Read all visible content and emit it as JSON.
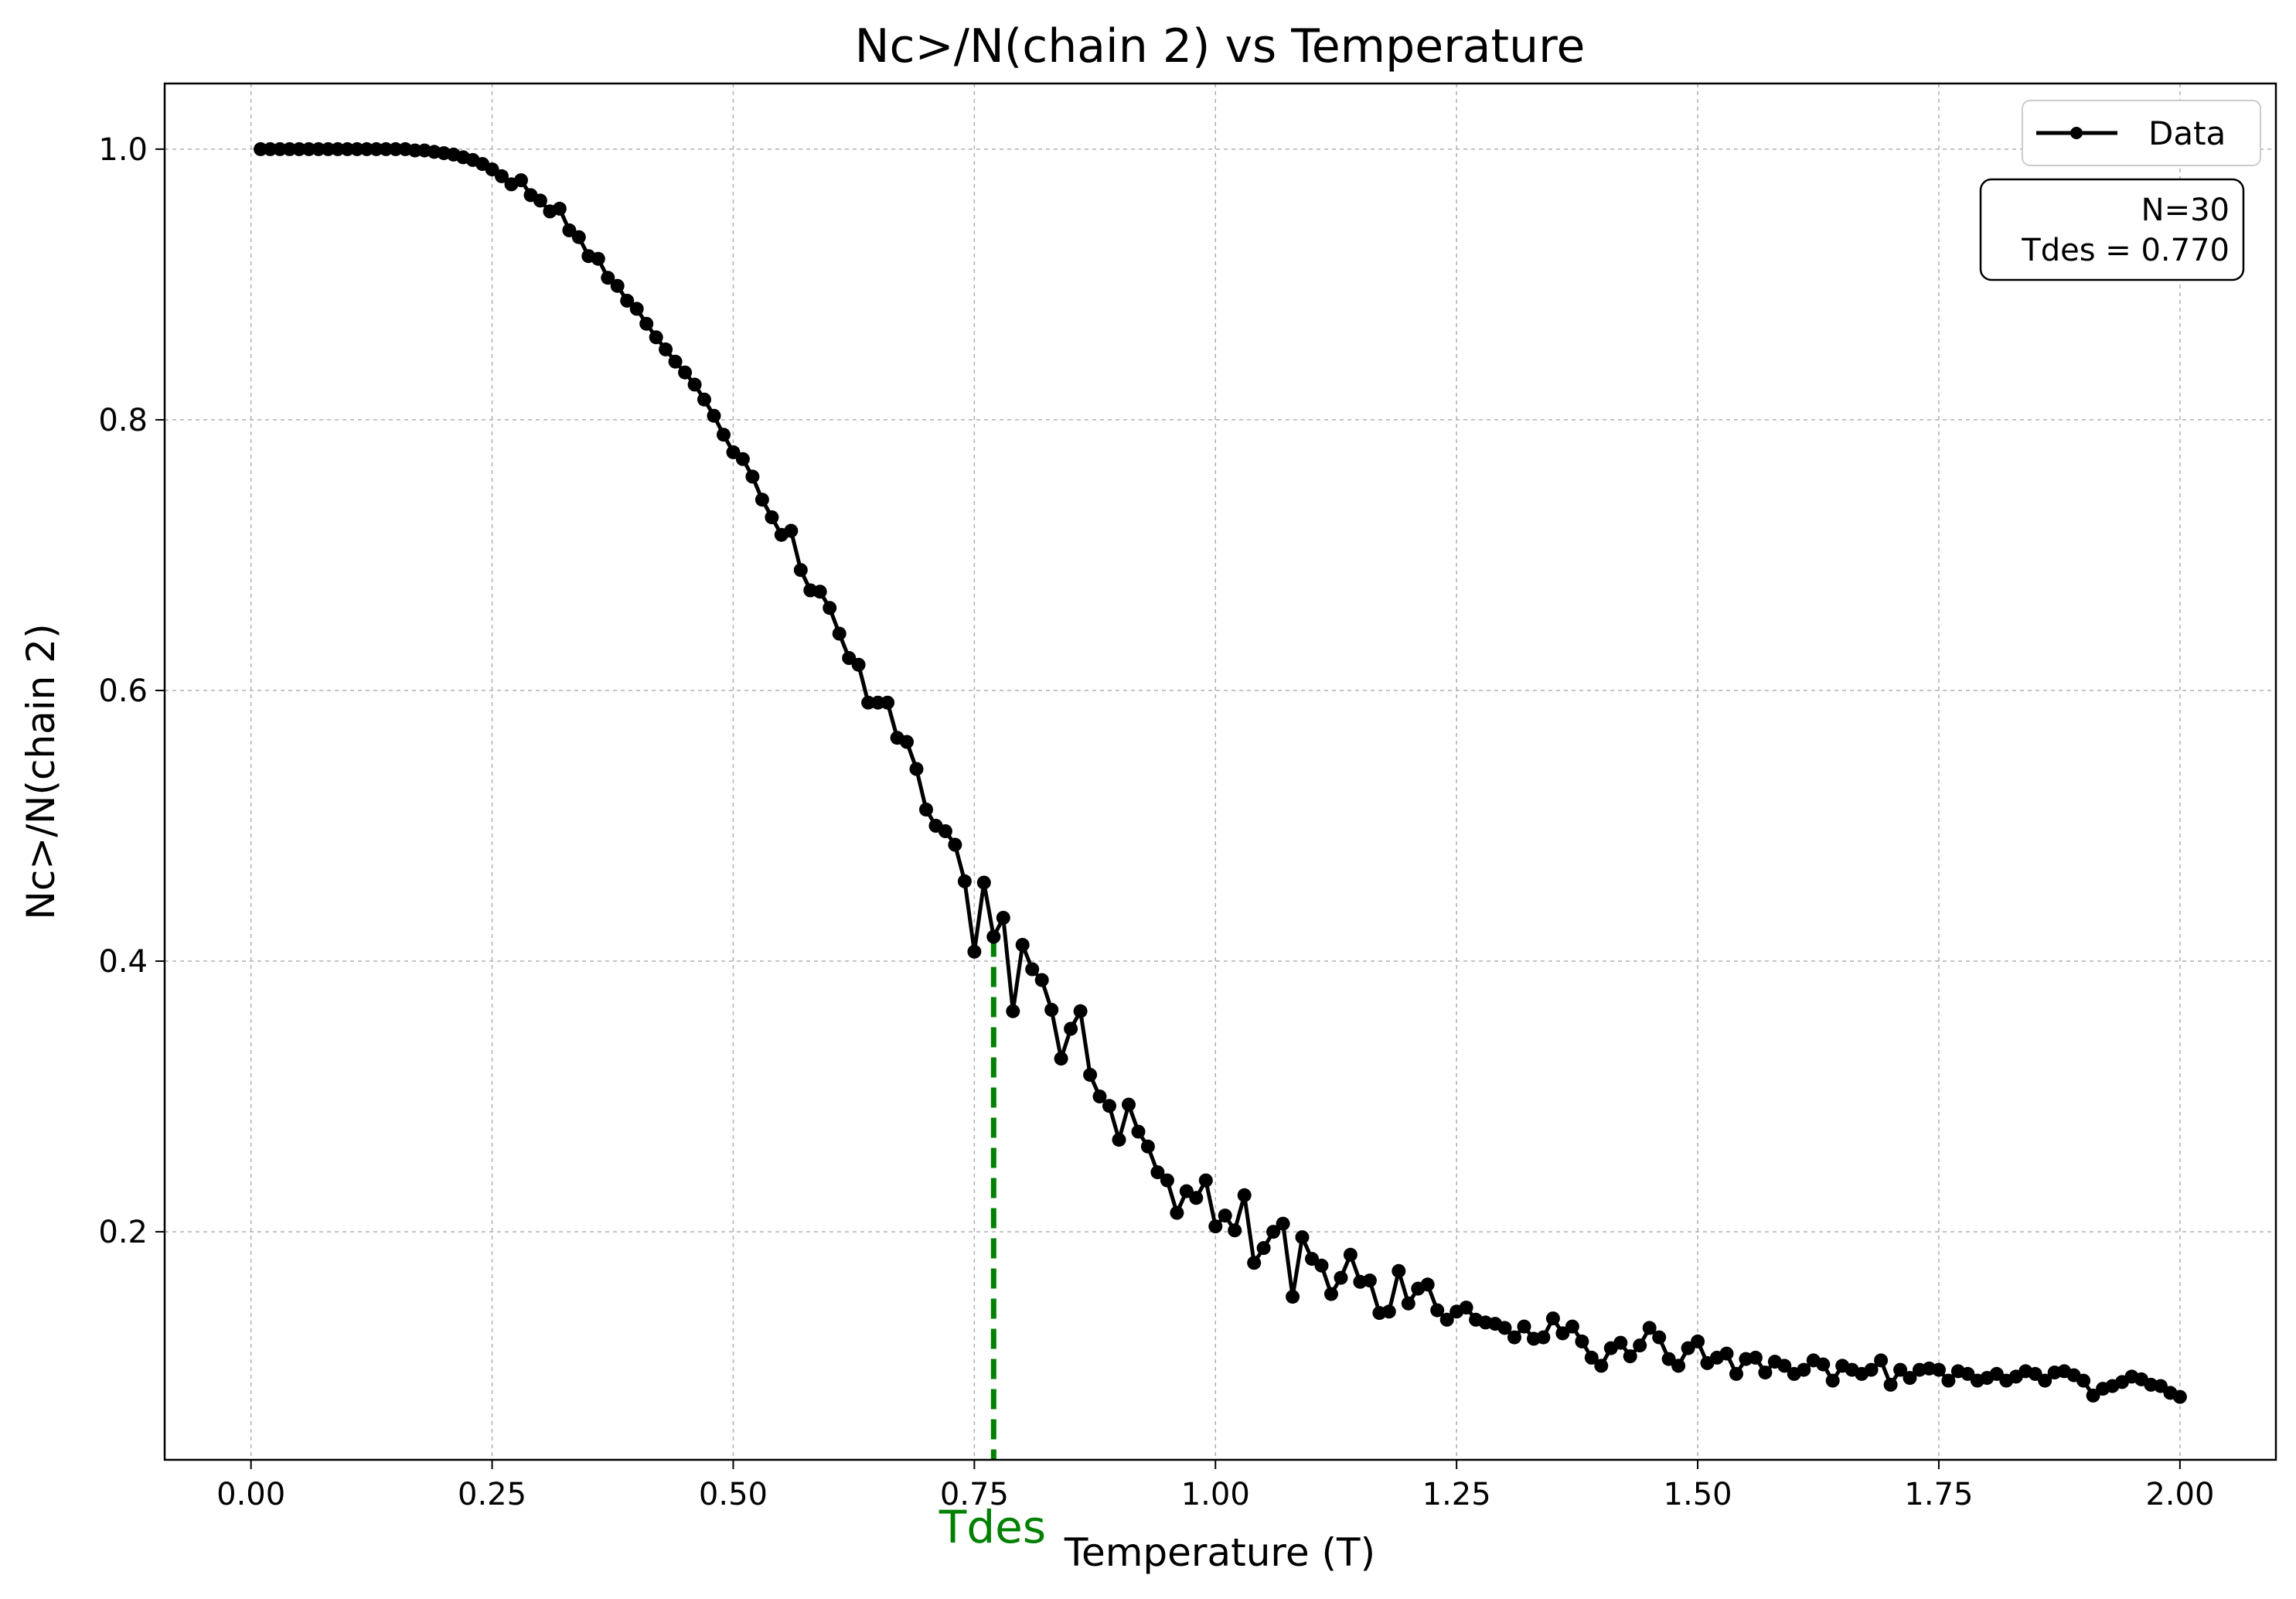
{
  "chart_data": {
    "type": "line",
    "title": "Nc>/N(chain 2) vs Temperature",
    "xlabel": "Temperature (T)",
    "ylabel": "Nc>/N(chain 2)",
    "xlim": [
      -0.0895,
      2.0995
    ],
    "ylim": [
      0.0315,
      1.0485
    ],
    "xticks": [
      0.0,
      0.25,
      0.5,
      0.75,
      1.0,
      1.25,
      1.5,
      1.75,
      2.0
    ],
    "xtick_labels": [
      "0.00",
      "0.25",
      "0.50",
      "0.75",
      "1.00",
      "1.25",
      "1.50",
      "1.75",
      "2.00"
    ],
    "yticks": [
      0.2,
      0.4,
      0.6,
      0.8,
      1.0
    ],
    "ytick_labels": [
      "0.2",
      "0.4",
      "0.6",
      "0.8",
      "1.0"
    ],
    "grid": true,
    "legend_position": "top-right",
    "series": [
      {
        "name": "Data",
        "color": "#000000",
        "marker": "circle",
        "x": [
          0.01,
          0.02,
          0.03,
          0.04,
          0.05,
          0.06,
          0.07,
          0.08,
          0.09,
          0.1,
          0.11,
          0.12,
          0.13,
          0.14,
          0.15,
          0.16,
          0.17,
          0.18,
          0.19,
          0.2,
          0.21,
          0.22,
          0.23,
          0.24,
          0.25,
          0.26,
          0.27,
          0.28,
          0.29,
          0.3,
          0.31,
          0.32,
          0.33,
          0.34,
          0.35,
          0.36,
          0.37,
          0.38,
          0.39,
          0.4,
          0.41,
          0.42,
          0.43,
          0.44,
          0.45,
          0.46,
          0.47,
          0.48,
          0.49,
          0.5,
          0.51,
          0.52,
          0.53,
          0.54,
          0.55,
          0.56,
          0.57,
          0.58,
          0.59,
          0.6,
          0.61,
          0.62,
          0.63,
          0.64,
          0.65,
          0.66,
          0.67,
          0.68,
          0.69,
          0.7,
          0.71,
          0.72,
          0.73,
          0.74,
          0.75,
          0.76,
          0.77,
          0.78,
          0.79,
          0.8,
          0.81,
          0.82,
          0.83,
          0.84,
          0.85,
          0.86,
          0.87,
          0.88,
          0.89,
          0.9,
          0.91,
          0.92,
          0.93,
          0.94,
          0.95,
          0.96,
          0.97,
          0.98,
          0.99,
          1.0,
          1.01,
          1.02,
          1.03,
          1.04,
          1.05,
          1.06,
          1.07,
          1.08,
          1.09,
          1.1,
          1.11,
          1.12,
          1.13,
          1.14,
          1.15,
          1.16,
          1.17,
          1.18,
          1.19,
          1.2,
          1.21,
          1.22,
          1.23,
          1.24,
          1.25,
          1.26,
          1.27,
          1.28,
          1.29,
          1.3,
          1.31,
          1.32,
          1.33,
          1.34,
          1.35,
          1.36,
          1.37,
          1.38,
          1.39,
          1.4,
          1.41,
          1.42,
          1.43,
          1.44,
          1.45,
          1.46,
          1.47,
          1.48,
          1.49,
          1.5,
          1.51,
          1.52,
          1.53,
          1.54,
          1.55,
          1.56,
          1.57,
          1.58,
          1.59,
          1.6,
          1.61,
          1.62,
          1.63,
          1.64,
          1.65,
          1.66,
          1.67,
          1.68,
          1.69,
          1.7,
          1.71,
          1.72,
          1.73,
          1.74,
          1.75,
          1.76,
          1.77,
          1.78,
          1.79,
          1.8,
          1.81,
          1.82,
          1.83,
          1.84,
          1.85,
          1.86,
          1.87,
          1.88,
          1.89,
          1.9,
          1.91,
          1.92,
          1.93,
          1.94,
          1.95,
          1.96,
          1.97,
          1.98,
          1.99,
          2.0
        ],
        "y": [
          1.0,
          1.0,
          1.0,
          1.0,
          1.0,
          1.0,
          1.0,
          1.0,
          1.0,
          1.0,
          1.0,
          1.0,
          1.0,
          1.0,
          1.0,
          1.0,
          0.999,
          0.999,
          0.998,
          0.997,
          0.996,
          0.994,
          0.992,
          0.989,
          0.985,
          0.98,
          0.974,
          0.977,
          0.966,
          0.962,
          0.954,
          0.956,
          0.94,
          0.935,
          0.921,
          0.919,
          0.905,
          0.899,
          0.888,
          0.882,
          0.871,
          0.861,
          0.852,
          0.843,
          0.835,
          0.826,
          0.815,
          0.803,
          0.789,
          0.776,
          0.771,
          0.758,
          0.741,
          0.728,
          0.715,
          0.718,
          0.689,
          0.674,
          0.673,
          0.661,
          0.642,
          0.624,
          0.619,
          0.591,
          0.591,
          0.591,
          0.565,
          0.562,
          0.542,
          0.512,
          0.5,
          0.496,
          0.486,
          0.459,
          0.407,
          0.458,
          0.418,
          0.432,
          0.363,
          0.412,
          0.394,
          0.386,
          0.364,
          0.328,
          0.35,
          0.363,
          0.316,
          0.3,
          0.293,
          0.268,
          0.294,
          0.274,
          0.263,
          0.244,
          0.238,
          0.214,
          0.23,
          0.225,
          0.238,
          0.204,
          0.212,
          0.201,
          0.227,
          0.177,
          0.188,
          0.2,
          0.206,
          0.152,
          0.196,
          0.18,
          0.175,
          0.154,
          0.166,
          0.183,
          0.163,
          0.164,
          0.14,
          0.141,
          0.171,
          0.147,
          0.158,
          0.161,
          0.142,
          0.135,
          0.141,
          0.144,
          0.135,
          0.133,
          0.132,
          0.129,
          0.122,
          0.13,
          0.121,
          0.122,
          0.136,
          0.125,
          0.13,
          0.119,
          0.107,
          0.101,
          0.114,
          0.118,
          0.108,
          0.116,
          0.129,
          0.122,
          0.106,
          0.101,
          0.114,
          0.119,
          0.103,
          0.107,
          0.11,
          0.095,
          0.106,
          0.107,
          0.096,
          0.104,
          0.101,
          0.095,
          0.098,
          0.105,
          0.102,
          0.09,
          0.101,
          0.098,
          0.095,
          0.098,
          0.105,
          0.087,
          0.098,
          0.092,
          0.098,
          0.099,
          0.098,
          0.09,
          0.097,
          0.095,
          0.09,
          0.092,
          0.095,
          0.09,
          0.093,
          0.097,
          0.095,
          0.09,
          0.096,
          0.097,
          0.094,
          0.09,
          0.079,
          0.084,
          0.086,
          0.089,
          0.093,
          0.091,
          0.087,
          0.086,
          0.081,
          0.078
        ]
      }
    ],
    "reference_line": {
      "x": 0.77,
      "y_top": 0.418,
      "color": "#008000",
      "style": "dashed",
      "label": "Tdes"
    },
    "info_box": {
      "lines": [
        "N=30",
        "Tdes = 0.770"
      ]
    }
  }
}
